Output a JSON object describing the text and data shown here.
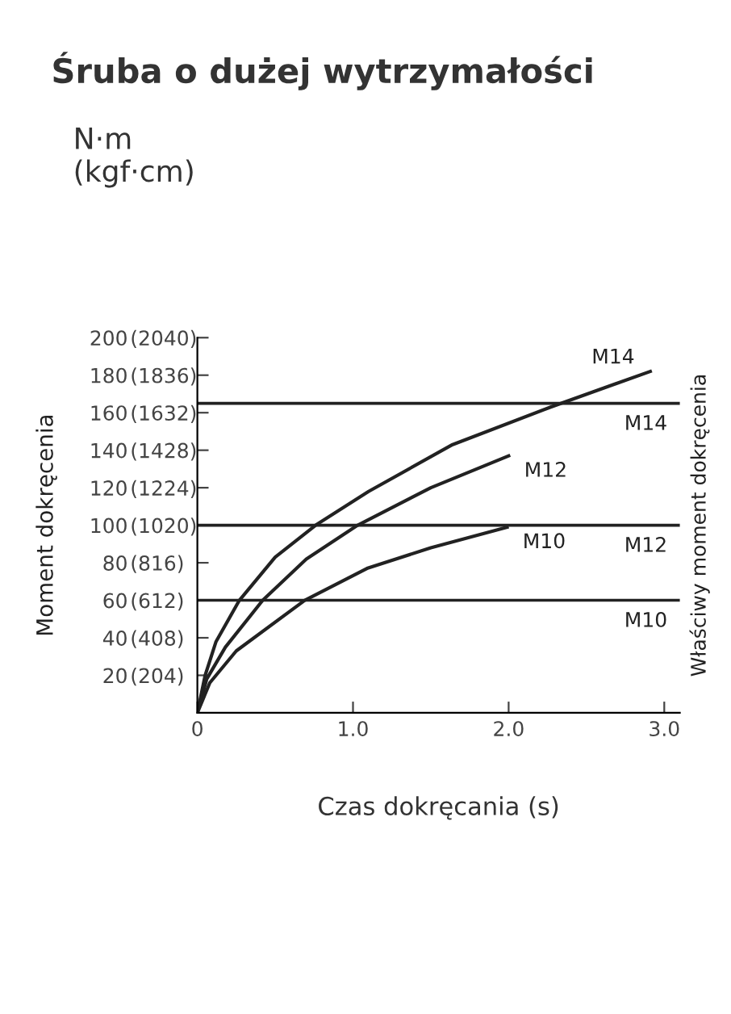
{
  "chart_data": {
    "type": "line",
    "title": "Śruba o dużej wytrzymałości",
    "subtitle": "N·m\n(kgf·cm)",
    "xlabel": "Czas dokręcania (s)",
    "ylabel": "Moment dokręcenia",
    "annotations": [
      "Właściwy moment dokręcenia"
    ],
    "series": [
      {
        "name": "M14",
        "color": "#222222",
        "x": [
          0,
          0.05,
          0.12,
          0.27,
          0.5,
          0.76,
          1.1,
          1.64,
          2.27,
          2.91
        ],
        "values": [
          0,
          20,
          38,
          60,
          83,
          100,
          118,
          143,
          163,
          182
        ]
      },
      {
        "name": "M12",
        "color": "#222222",
        "x": [
          0,
          0.06,
          0.18,
          0.42,
          0.7,
          1.03,
          1.5,
          2.0
        ],
        "values": [
          0,
          18,
          35,
          60,
          82,
          100,
          120,
          137
        ]
      },
      {
        "name": "M10",
        "color": "#222222",
        "x": [
          0,
          0.08,
          0.25,
          0.69,
          1.09,
          1.5,
          1.99
        ],
        "values": [
          0,
          16,
          33,
          60,
          77,
          88,
          99
        ]
      }
    ],
    "ref_lines": [
      {
        "axis": "y",
        "value": 165,
        "label": "M14",
        "color": "#222222"
      },
      {
        "axis": "y",
        "value": 100,
        "label": "M12",
        "color": "#222222"
      },
      {
        "axis": "y",
        "value": 60,
        "label": "M10",
        "color": "#222222"
      }
    ],
    "xlim": [
      0,
      3.1
    ],
    "ylim": [
      0,
      200
    ],
    "xticks": [
      0,
      {
        "value": 1.0,
        "label": "1.0"
      },
      {
        "value": 2.0,
        "label": "2.0"
      },
      {
        "value": 3.0,
        "label": "3.0"
      }
    ],
    "yticks": [
      20,
      40,
      60,
      80,
      100,
      120,
      140,
      160,
      180,
      200
    ],
    "y2lim": [
      0,
      2040
    ],
    "y2ticks": [
      {
        "value": 204,
        "label": "(204)"
      },
      {
        "value": 408,
        "label": "(408)"
      },
      {
        "value": 612,
        "label": "(612)"
      },
      {
        "value": 816,
        "label": "(816)"
      },
      {
        "value": 1020,
        "label": "(1020)"
      },
      {
        "value": 1224,
        "label": "(1224)"
      },
      {
        "value": 1428,
        "label": "(1428)"
      },
      {
        "value": 1632,
        "label": "(1632)"
      },
      {
        "value": 1836,
        "label": "(1836)"
      },
      {
        "value": 2040,
        "label": "(2040)"
      }
    ],
    "grid": false,
    "legend": false,
    "marker": "none",
    "line_style": "solid"
  }
}
